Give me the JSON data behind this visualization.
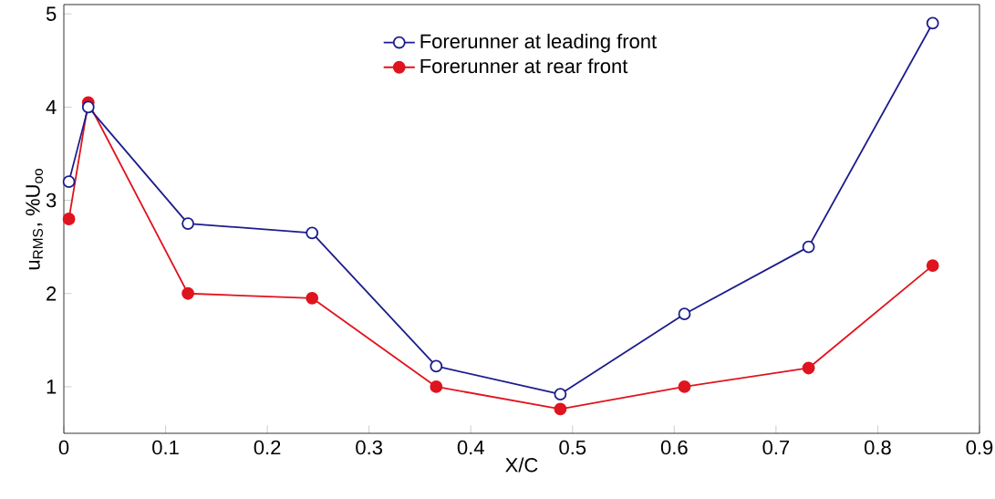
{
  "chart_data": {
    "type": "line",
    "xlabel": "X/C",
    "ylabel": "u$_{RMS}$, %U$_{oo}$",
    "x": [
      0.005,
      0.024,
      0.122,
      0.244,
      0.366,
      0.488,
      0.61,
      0.732,
      0.854
    ],
    "series": [
      {
        "name": "Forerunner at leading front",
        "color": "#1c1c8c",
        "values": [
          3.2,
          4.0,
          2.75,
          2.65,
          1.22,
          0.92,
          1.78,
          2.5,
          4.9
        ]
      },
      {
        "name": "Forerunner at rear front",
        "color": "#e0141e",
        "values": [
          2.8,
          4.05,
          2.0,
          1.95,
          1.0,
          0.76,
          1.0,
          1.2,
          2.3
        ]
      }
    ],
    "xlim": [
      0,
      0.9
    ],
    "xticks": [
      0,
      0.1,
      0.2,
      0.3,
      0.4,
      0.5,
      0.6,
      0.7,
      0.8,
      0.9
    ],
    "ylim": [
      0.5,
      5.1
    ],
    "yticks": [
      1,
      2,
      3,
      4,
      5
    ],
    "grid": false,
    "legend": "top",
    "marker": "circle",
    "line_style": "solid"
  }
}
